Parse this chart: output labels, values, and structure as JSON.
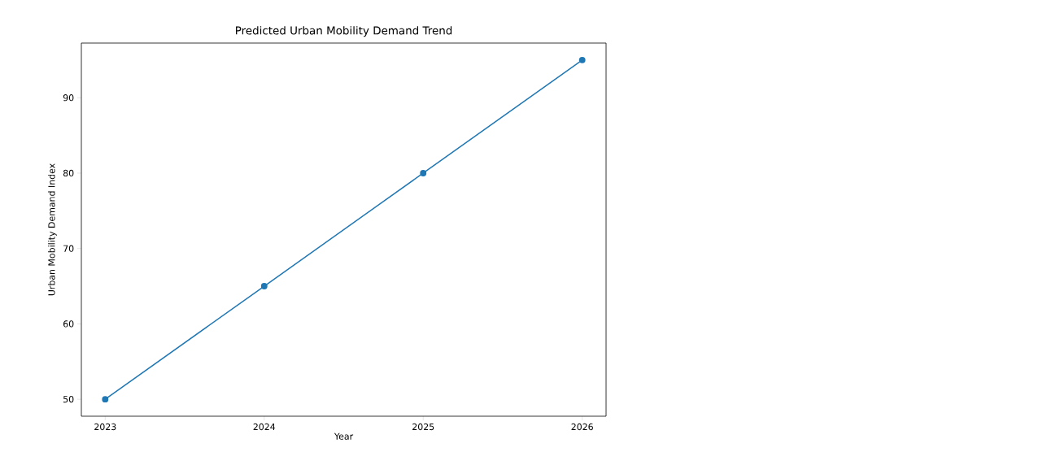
{
  "chart_data": {
    "type": "line",
    "title": "Predicted Urban Mobility Demand Trend",
    "xlabel": "Year",
    "ylabel": "Urban Mobility Demand Index",
    "x": [
      2023,
      2024,
      2025,
      2026
    ],
    "series": [
      {
        "color": "#1f77b4",
        "values": [
          50,
          65,
          80,
          95
        ]
      }
    ],
    "xlim": [
      2022.85,
      2026.15
    ],
    "ylim": [
      47.75,
      97.25
    ],
    "xticks": [
      2023,
      2024,
      2025,
      2026
    ],
    "yticks": [
      50,
      60,
      70,
      80,
      90
    ],
    "marker": "circle",
    "line_style": "solid",
    "grid": false
  }
}
